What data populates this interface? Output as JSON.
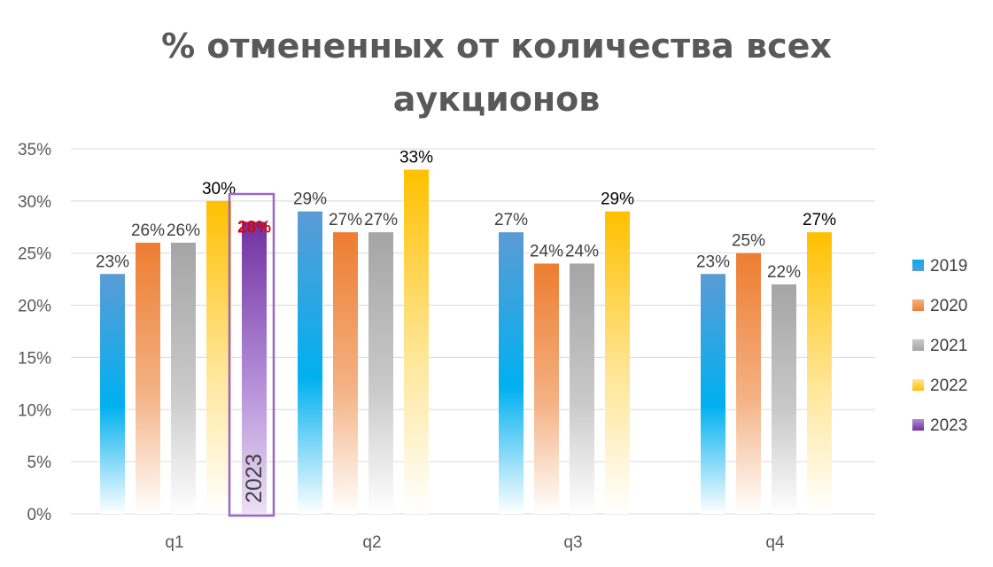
{
  "chart_data": {
    "type": "bar",
    "title_lines": [
      "% отмененных от количества всех",
      "аукционов"
    ],
    "categories": [
      "q1",
      "q2",
      "q3",
      "q4"
    ],
    "series": [
      {
        "name": "2019",
        "values": [
          23,
          29,
          27,
          23
        ],
        "labels": [
          "23%",
          "29%",
          "27%",
          "23%"
        ],
        "color": "#00b0f0"
      },
      {
        "name": "2020",
        "values": [
          26,
          27,
          24,
          25
        ],
        "labels": [
          "26%",
          "27%",
          "24%",
          "25%"
        ],
        "color": "#ed7d31"
      },
      {
        "name": "2021",
        "values": [
          26,
          27,
          24,
          22
        ],
        "labels": [
          "26%",
          "27%",
          "24%",
          "22%"
        ],
        "color": "#a5a5a5"
      },
      {
        "name": "2022",
        "values": [
          30,
          33,
          29,
          27
        ],
        "labels": [
          "30%",
          "33%",
          "29%",
          "27%"
        ],
        "color": "#ffc000"
      },
      {
        "name": "2023",
        "values": [
          28,
          null,
          null,
          null
        ],
        "labels": [
          "28%",
          "",
          "",
          ""
        ],
        "color": "#7030a0"
      }
    ],
    "highlight": {
      "series": "2023",
      "category": "q1",
      "label": "28%",
      "label_color": "#e00000",
      "box_color": "#9966cc",
      "box_text": "2023"
    },
    "y_ticks": [
      "0%",
      "5%",
      "10%",
      "15%",
      "20%",
      "25%",
      "30%",
      "35%"
    ],
    "ylim": [
      0,
      35
    ],
    "y_format": "percent",
    "grid": true,
    "legend_position": "right"
  }
}
